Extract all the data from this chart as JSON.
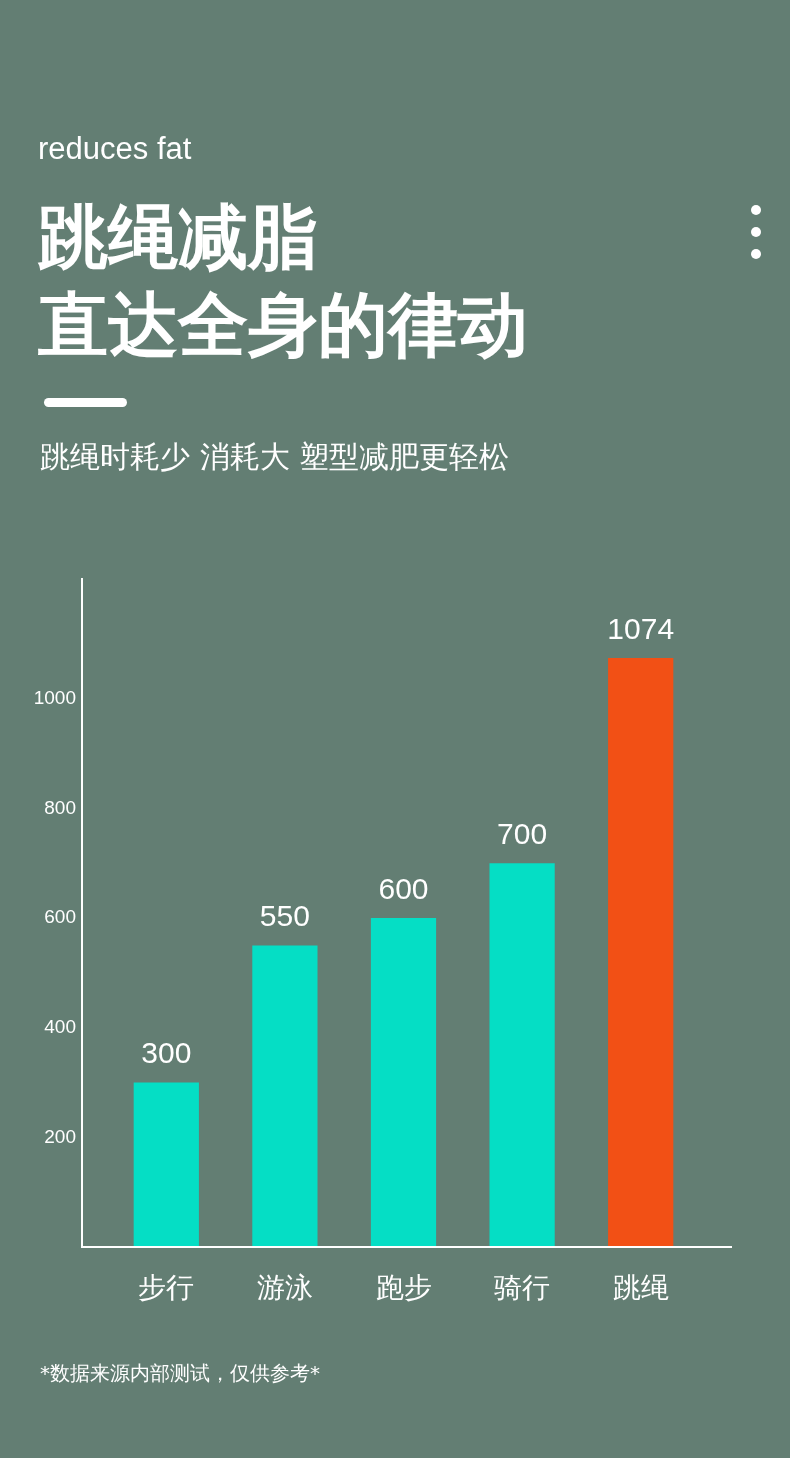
{
  "chart_data": {
    "type": "bar",
    "title": "跳绳减脂",
    "subtitle": "直达全身的律动",
    "annotations": [
      "reduces fat",
      "跳绳时耗少 消耗大 塑型减肥更轻松",
      "*数据来源内部测试，仅供参考*"
    ],
    "categories": [
      "步行",
      "游泳",
      "跑步",
      "骑行",
      "跳绳"
    ],
    "values": [
      300,
      550,
      600,
      700,
      1074
    ],
    "colors": [
      "#05dec5",
      "#05dec5",
      "#05dec5",
      "#05dec5",
      "#f25015"
    ],
    "ylim": [
      0,
      1220
    ],
    "yticks": [
      200,
      400,
      600,
      800,
      1000
    ],
    "data_labels": true
  }
}
